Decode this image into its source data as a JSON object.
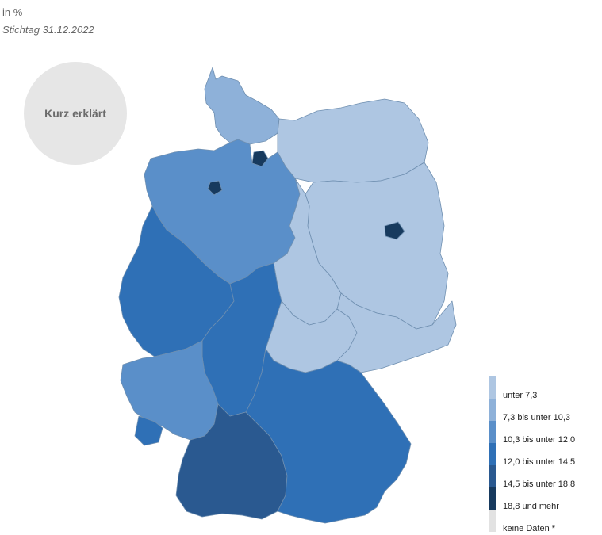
{
  "header": {
    "unit": "in %",
    "date": "Stichtag 31.12.2022"
  },
  "explain_button": {
    "label": "Kurz erklärt"
  },
  "legend": {
    "items": [
      {
        "label": "unter 7,3",
        "color": "#aec6e2"
      },
      {
        "label": "7,3 bis unter 10,3",
        "color": "#8eb1d9"
      },
      {
        "label": "10,3 bis unter 12,0",
        "color": "#5a8fc9"
      },
      {
        "label": "12,0 bis unter 14,5",
        "color": "#2f70b6"
      },
      {
        "label": "14,5 bis unter 18,8",
        "color": "#2a5990"
      },
      {
        "label": "18,8 und mehr",
        "color": "#173a5e"
      },
      {
        "label": "keine Daten *",
        "color": "#e2e2e2"
      }
    ]
  },
  "map": {
    "regions": [
      {
        "name": "Schleswig-Holstein",
        "class": 1
      },
      {
        "name": "Hamburg",
        "class": 5
      },
      {
        "name": "Mecklenburg-Vorpommern",
        "class": 0
      },
      {
        "name": "Niedersachsen",
        "class": 2
      },
      {
        "name": "Bremen",
        "class": 5
      },
      {
        "name": "Berlin",
        "class": 5
      },
      {
        "name": "Brandenburg",
        "class": 0
      },
      {
        "name": "Sachsen-Anhalt",
        "class": 0
      },
      {
        "name": "Nordrhein-Westfalen",
        "class": 3
      },
      {
        "name": "Hessen",
        "class": 3
      },
      {
        "name": "Thüringen",
        "class": 0
      },
      {
        "name": "Sachsen",
        "class": 0
      },
      {
        "name": "Rheinland-Pfalz",
        "class": 2
      },
      {
        "name": "Saarland",
        "class": 3
      },
      {
        "name": "Baden-Württemberg",
        "class": 4
      },
      {
        "name": "Bayern",
        "class": 3
      }
    ]
  }
}
